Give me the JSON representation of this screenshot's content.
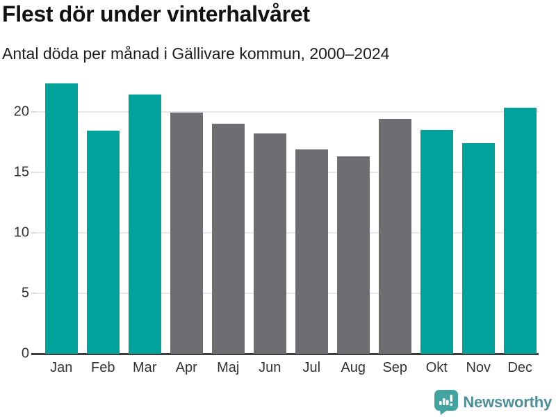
{
  "header": {
    "title": "Flest dör under vinterhalvåret",
    "subtitle": "Antal döda per månad i Gällivare kommun, 2000–2024"
  },
  "chart_data": {
    "type": "bar",
    "title": "Flest dör under vinterhalvåret",
    "subtitle": "Antal döda per månad i Gällivare kommun, 2000–2024",
    "categories": [
      "Jan",
      "Feb",
      "Mar",
      "Apr",
      "Maj",
      "Jun",
      "Jul",
      "Aug",
      "Sep",
      "Okt",
      "Nov",
      "Dec"
    ],
    "values": [
      22.3,
      18.4,
      21.4,
      19.9,
      19.0,
      18.2,
      16.9,
      16.3,
      19.4,
      18.5,
      17.4,
      20.3
    ],
    "bar_colors": [
      "#00a39c",
      "#00a39c",
      "#00a39c",
      "#6d6d72",
      "#6d6d72",
      "#6d6d72",
      "#6d6d72",
      "#6d6d72",
      "#6d6d72",
      "#00a39c",
      "#00a39c",
      "#00a39c"
    ],
    "xlabel": "",
    "ylabel": "",
    "yticks": [
      0,
      5,
      10,
      15,
      20
    ],
    "ylim": [
      0,
      22.9
    ],
    "grid": "horizontal",
    "legend": "none",
    "colors": {
      "highlight_teal": "#00a39c",
      "neutral_gray": "#6d6d72",
      "gridline": "#e7e7e7",
      "axis_line": "#3d3d3d",
      "text": "#333333"
    }
  },
  "footer": {
    "brand": "Newsworthy",
    "logo_icon": "newsworthy-speech-bubble-barchart-icon",
    "logo_bubble_color": "#43a3a1",
    "logo_text_color": "#4d8f96"
  }
}
